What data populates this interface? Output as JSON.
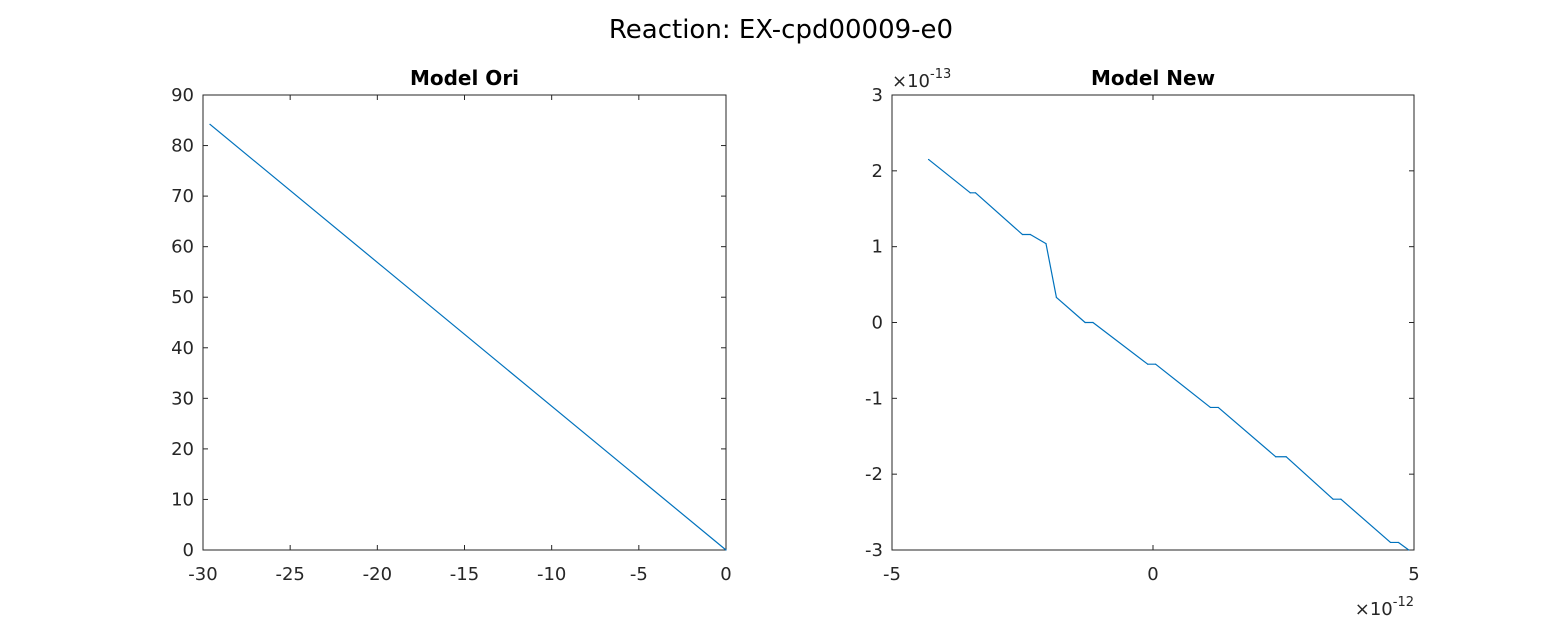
{
  "figure": {
    "title": "Reaction: EX-cpd00009-e0"
  },
  "chart_data": [
    {
      "type": "line",
      "title": "Model Ori",
      "xlabel": "",
      "ylabel": "",
      "xlim": [
        -30,
        0
      ],
      "ylim": [
        0,
        90
      ],
      "xticks": [
        -30,
        -25,
        -20,
        -15,
        -10,
        -5,
        0
      ],
      "yticks": [
        0,
        10,
        20,
        30,
        40,
        50,
        60,
        70,
        80,
        90
      ],
      "xtick_labels": [
        "-30",
        "-25",
        "-20",
        "-15",
        "-10",
        "-5",
        "0"
      ],
      "ytick_labels": [
        "0",
        "10",
        "20",
        "30",
        "40",
        "50",
        "60",
        "70",
        "80",
        "90"
      ],
      "grid": false,
      "color": "#0072BD",
      "series": [
        {
          "x": [
            -29.6,
            0
          ],
          "y": [
            84.2,
            0
          ]
        }
      ]
    },
    {
      "type": "line",
      "title": "Model New",
      "xlabel": "",
      "ylabel": "",
      "x_exponent_label": {
        "base": "×10",
        "power": "-12"
      },
      "y_exponent_label": {
        "base": "×10",
        "power": "-13"
      },
      "xlim": [
        -5,
        5
      ],
      "ylim": [
        -3,
        3
      ],
      "xticks": [
        -5,
        0,
        5
      ],
      "yticks": [
        -3,
        -2,
        -1,
        0,
        1,
        2,
        3
      ],
      "xtick_labels": [
        "-5",
        "0",
        "5"
      ],
      "ytick_labels": [
        "-3",
        "-2",
        "-1",
        "0",
        "1",
        "2",
        "3"
      ],
      "grid": false,
      "color": "#0072BD",
      "series": [
        {
          "x": [
            -4.3,
            -3.5,
            -3.4,
            -2.5,
            -2.35,
            -2.05,
            -1.85,
            -1.3,
            -1.15,
            -0.1,
            0.05,
            1.1,
            1.25,
            2.35,
            2.55,
            3.45,
            3.6,
            4.55,
            4.7,
            4.9
          ],
          "y": [
            2.15,
            1.71,
            1.71,
            1.16,
            1.16,
            1.04,
            0.33,
            0.0,
            0.0,
            -0.55,
            -0.55,
            -1.12,
            -1.12,
            -1.77,
            -1.77,
            -2.33,
            -2.33,
            -2.9,
            -2.9,
            -3.0
          ]
        }
      ]
    }
  ]
}
